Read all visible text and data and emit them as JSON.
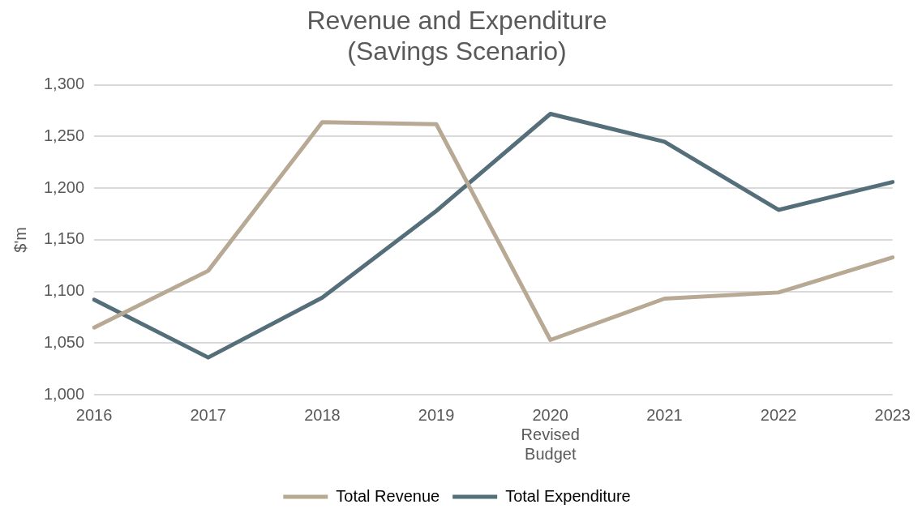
{
  "chart_data": {
    "type": "line",
    "title": "Revenue and Expenditure\n(Savings Scenario)",
    "ylabel": "$'m",
    "categories": [
      "2016",
      "2017",
      "2018",
      "2019",
      "2020\nRevised\nBudget",
      "2021",
      "2022",
      "2023"
    ],
    "series": [
      {
        "name": "Total Revenue",
        "color": "#b8a994",
        "values": [
          1065,
          1120,
          1264,
          1262,
          1053,
          1093,
          1099,
          1133
        ]
      },
      {
        "name": "Total Expenditure",
        "color": "#546e7a",
        "values": [
          1092,
          1036,
          1094,
          1178,
          1272,
          1245,
          1179,
          1206
        ]
      }
    ],
    "ylim": [
      1000,
      1300
    ],
    "yticks": [
      {
        "value": 1000,
        "label": "1,000"
      },
      {
        "value": 1050,
        "label": "1,050"
      },
      {
        "value": 1100,
        "label": "1,100"
      },
      {
        "value": 1150,
        "label": "1,150"
      },
      {
        "value": 1200,
        "label": "1,200"
      },
      {
        "value": 1250,
        "label": "1,250"
      },
      {
        "value": 1300,
        "label": "1,300"
      }
    ],
    "grid": "y",
    "legend": "bottom",
    "marker": "none",
    "line_style": "solid"
  }
}
